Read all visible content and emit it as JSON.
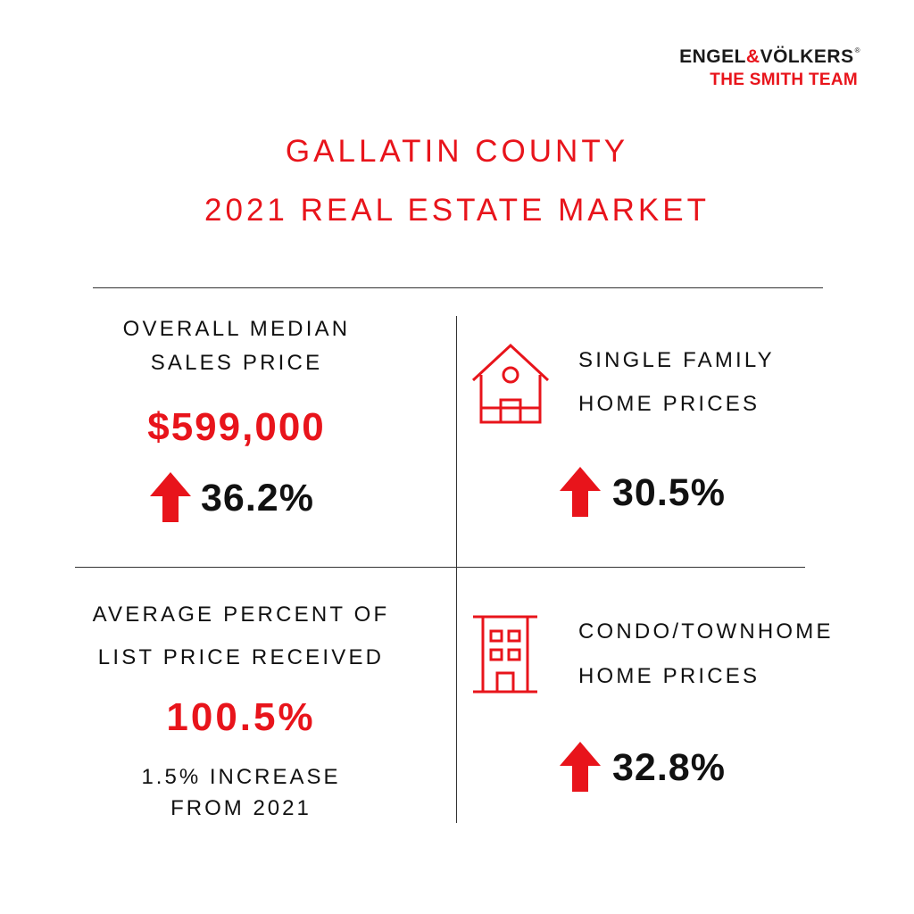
{
  "logo": {
    "brand_left": "ENGEL",
    "brand_amp": "&",
    "brand_right": "VÖLKERS",
    "registered": "®",
    "team": "THE SMITH TEAM"
  },
  "title": {
    "line1": "GALLATIN COUNTY",
    "line2": "2021 REAL ESTATE MARKET"
  },
  "stats": {
    "median": {
      "label_line1": "OVERALL MEDIAN",
      "label_line2": "SALES PRICE",
      "value": "$599,000",
      "change": "36.2%"
    },
    "single_family": {
      "label_line1": "SINGLE FAMILY",
      "label_line2": "HOME PRICES",
      "change": "30.5%",
      "icon": "house-icon"
    },
    "list_price": {
      "label_line1": "AVERAGE PERCENT OF",
      "label_line2": "LIST PRICE RECEIVED",
      "value": "100.5%",
      "note_line1": "1.5% INCREASE",
      "note_line2": "FROM 2021"
    },
    "condo": {
      "label_line1": "CONDO/TOWNHOME",
      "label_line2": "HOME PRICES",
      "change": "32.8%",
      "icon": "building-icon"
    }
  },
  "colors": {
    "accent": "#e8141b",
    "text": "#111111",
    "background": "#ffffff"
  }
}
